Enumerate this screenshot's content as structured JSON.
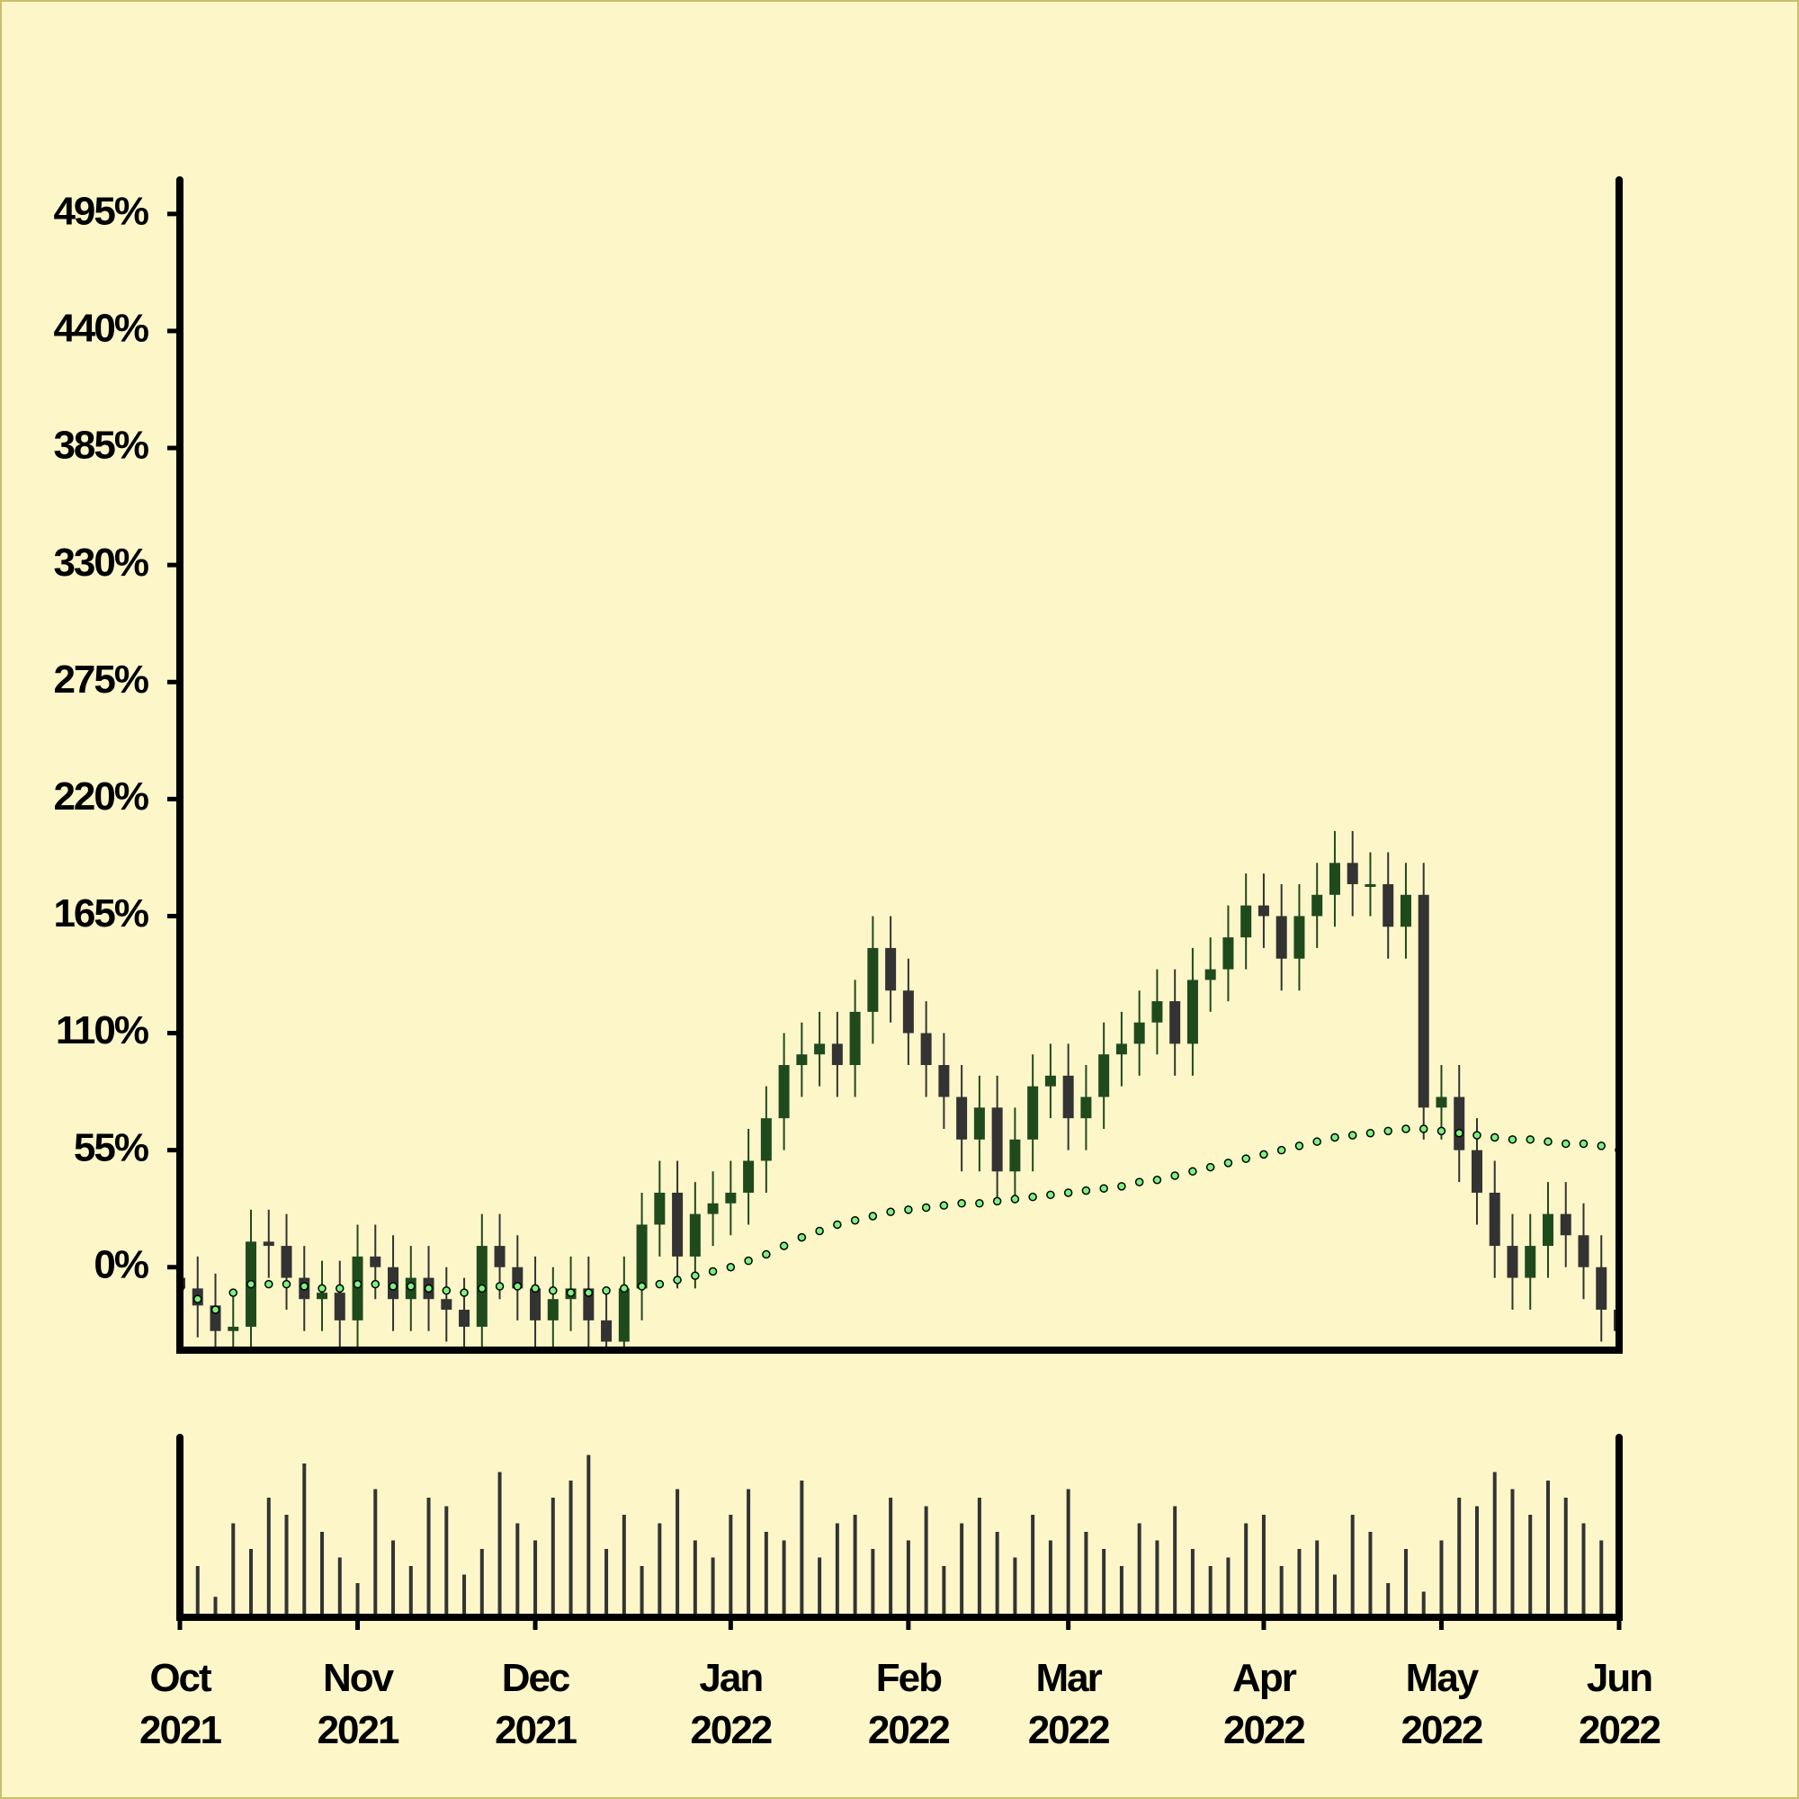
{
  "chart_data": {
    "type": "candlestick",
    "categories": [
      "Oct 2021",
      null,
      null,
      null,
      null,
      null,
      null,
      null,
      null,
      null,
      "Nov 2021",
      null,
      null,
      null,
      null,
      null,
      null,
      null,
      null,
      null,
      "Dec 2021",
      null,
      null,
      null,
      null,
      null,
      null,
      null,
      null,
      null,
      null,
      "Jan 2022",
      null,
      null,
      null,
      null,
      null,
      null,
      null,
      null,
      null,
      "Feb 2022",
      null,
      null,
      null,
      null,
      null,
      null,
      null,
      null,
      "Mar 2022",
      null,
      null,
      null,
      null,
      null,
      null,
      null,
      null,
      null,
      null,
      "Apr 2022",
      null,
      null,
      null,
      null,
      null,
      null,
      null,
      null,
      null,
      "May 2022",
      null,
      null,
      null,
      null,
      null,
      null,
      null,
      null,
      null,
      "Jun 2022"
    ],
    "open": [
      -5,
      -10,
      -18,
      -30,
      -28,
      12,
      10,
      -5,
      -15,
      -12,
      -25,
      5,
      0,
      -15,
      -5,
      -15,
      -20,
      -28,
      10,
      0,
      -10,
      -25,
      -15,
      -10,
      -25,
      -35,
      -10,
      20,
      35,
      5,
      25,
      30,
      35,
      50,
      70,
      95,
      100,
      105,
      95,
      120,
      150,
      130,
      110,
      95,
      80,
      60,
      75,
      45,
      60,
      85,
      90,
      70,
      80,
      100,
      105,
      115,
      125,
      105,
      135,
      140,
      155,
      170,
      165,
      145,
      165,
      175,
      190,
      180,
      180,
      160,
      175,
      75,
      80,
      55,
      35,
      10,
      -5,
      10,
      25,
      15,
      0,
      -20
    ],
    "high": [
      10,
      5,
      -3,
      -13,
      27,
      27,
      25,
      10,
      3,
      3,
      20,
      20,
      15,
      10,
      10,
      0,
      -5,
      25,
      25,
      15,
      5,
      0,
      5,
      5,
      -10,
      5,
      35,
      50,
      50,
      40,
      45,
      50,
      65,
      85,
      110,
      115,
      120,
      120,
      135,
      165,
      165,
      145,
      125,
      110,
      95,
      90,
      90,
      75,
      100,
      105,
      105,
      95,
      115,
      120,
      130,
      140,
      140,
      150,
      155,
      170,
      185,
      185,
      180,
      180,
      190,
      205,
      205,
      195,
      195,
      190,
      190,
      95,
      95,
      70,
      50,
      25,
      25,
      40,
      40,
      30,
      15,
      -5
    ],
    "low": [
      -25,
      -33,
      -45,
      -45,
      -43,
      -5,
      -20,
      -30,
      -30,
      -40,
      -40,
      -15,
      -30,
      -30,
      -30,
      -35,
      -43,
      -43,
      -15,
      -25,
      -40,
      -40,
      -30,
      -40,
      -50,
      -50,
      -25,
      5,
      -10,
      -10,
      10,
      15,
      20,
      35,
      55,
      80,
      85,
      80,
      80,
      105,
      115,
      95,
      80,
      65,
      45,
      45,
      30,
      30,
      45,
      70,
      55,
      55,
      65,
      85,
      90,
      100,
      90,
      90,
      120,
      125,
      140,
      150,
      130,
      130,
      150,
      160,
      165,
      165,
      145,
      145,
      60,
      60,
      40,
      20,
      -5,
      -20,
      -20,
      -5,
      0,
      -15,
      -35,
      -45
    ],
    "close": [
      -10,
      -18,
      -30,
      -28,
      12,
      10,
      -5,
      -15,
      -12,
      -25,
      5,
      0,
      -15,
      -5,
      -15,
      -20,
      -28,
      10,
      0,
      -10,
      -25,
      -15,
      -10,
      -25,
      -35,
      -10,
      20,
      35,
      5,
      25,
      30,
      35,
      50,
      70,
      95,
      100,
      105,
      95,
      120,
      150,
      130,
      110,
      95,
      80,
      60,
      75,
      45,
      60,
      85,
      90,
      70,
      80,
      100,
      105,
      115,
      125,
      105,
      135,
      140,
      155,
      170,
      165,
      145,
      165,
      175,
      190,
      180,
      180,
      160,
      175,
      75,
      80,
      55,
      35,
      10,
      -5,
      10,
      25,
      15,
      0,
      -20,
      -30
    ],
    "moving_average": [
      -10,
      -15,
      -20,
      -12,
      -8,
      -8,
      -8,
      -9,
      -10,
      -10,
      -8,
      -8,
      -9,
      -9,
      -10,
      -11,
      -12,
      -10,
      -9,
      -9,
      -10,
      -11,
      -12,
      -12,
      -11,
      -10,
      -9,
      -8,
      -6,
      -4,
      -2,
      0,
      3,
      6,
      10,
      14,
      17,
      20,
      22,
      24,
      26,
      27,
      28,
      29,
      30,
      30,
      31,
      32,
      33,
      34,
      35,
      36,
      37,
      38,
      40,
      41,
      43,
      45,
      47,
      49,
      51,
      53,
      55,
      57,
      59,
      61,
      62,
      63,
      64,
      65,
      65,
      64,
      63,
      62,
      61,
      60,
      60,
      59,
      58,
      58,
      57,
      55
    ],
    "volume": [
      8,
      30,
      12,
      55,
      40,
      70,
      60,
      90,
      50,
      35,
      20,
      75,
      45,
      30,
      70,
      65,
      25,
      40,
      85,
      55,
      45,
      70,
      80,
      95,
      40,
      60,
      30,
      55,
      75,
      45,
      35,
      60,
      75,
      50,
      45,
      80,
      35,
      55,
      60,
      40,
      70,
      45,
      65,
      30,
      55,
      70,
      50,
      35,
      60,
      45,
      75,
      50,
      40,
      30,
      55,
      45,
      65,
      40,
      30,
      35,
      55,
      60,
      30,
      40,
      45,
      25,
      60,
      50,
      20,
      40,
      15,
      45,
      70,
      65,
      85,
      75,
      60,
      80,
      70,
      55,
      45,
      65
    ],
    "ylim": [
      -39,
      511
    ],
    "yticks": [
      {
        "value": 0,
        "label": "0%"
      },
      {
        "value": 55,
        "label": "55%"
      },
      {
        "value": 110,
        "label": "110%"
      },
      {
        "value": 165,
        "label": "165%"
      },
      {
        "value": 220,
        "label": "220%"
      },
      {
        "value": 275,
        "label": "275%"
      },
      {
        "value": 330,
        "label": "330%"
      },
      {
        "value": 385,
        "label": "385%"
      },
      {
        "value": 440,
        "label": "440%"
      },
      {
        "value": 495,
        "label": "495%"
      }
    ],
    "volume_ylim": [
      0,
      100
    ],
    "up_color": "#1f4a1c",
    "down_color": "#333333",
    "volume_color": "#333333",
    "ma_color": "#7cf27c"
  }
}
